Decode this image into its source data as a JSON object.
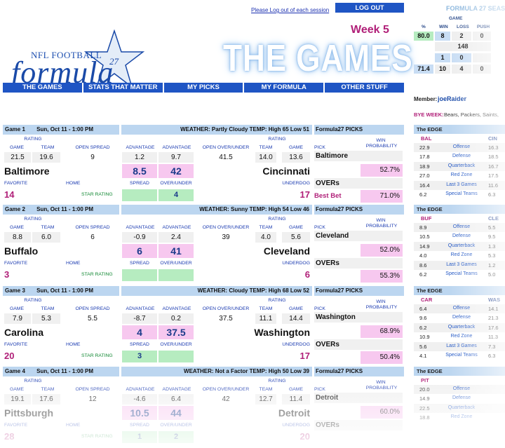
{
  "header": {
    "logout_text": "Please Log out of each session",
    "logout_button": "LOG OUT",
    "logo_small": "NFL FOOTBALL",
    "logo_big": "formula",
    "logo_27": "27",
    "week": "Week 5",
    "title": "THE GAMES"
  },
  "nav": [
    "THE GAMES",
    "STATS THAT MATTER",
    "MY PICKS",
    "MY FORMULA",
    "OTHER STUFF"
  ],
  "season": {
    "title": "FORMULA 27 SEAS",
    "game_label": "GAME",
    "headers": [
      "%",
      "WIN",
      "LOSS",
      "PUSH"
    ],
    "row1": [
      "80.0",
      "8",
      "2",
      "0"
    ],
    "row2": "148",
    "row3": [
      "1",
      "0"
    ],
    "row4": [
      "71.4",
      "10",
      "4",
      "0"
    ]
  },
  "member": {
    "label": "Member:",
    "value": "joeRaider"
  },
  "bye": {
    "label": "BYE WEEK:",
    "value": "Bears, Packers, Saints,"
  },
  "labels": {
    "rating": "RATING",
    "game": "GAME",
    "team": "TEAM",
    "open_spread": "OPEN SPREAD",
    "advantage": "ADVANTAGE",
    "open_ou": "OPEN OVER/UNDER",
    "pick": "PICK",
    "win": "WIN",
    "probability": "PROBABILITY",
    "favorite": "FAVORITE",
    "home": "HOME",
    "spread": "SPREAD",
    "over_under": "OVER/UNDER",
    "underdog": "UNDERDOG",
    "star_rating": "STAR RATING",
    "picks_bar": "Formula27 PICKS",
    "overs": "OVERs",
    "best_bet": "Best Bet",
    "edge": "The EDGE"
  },
  "games": [
    {
      "num": "Game 1",
      "date": "Sun, Oct 11 - 1:00 PM",
      "weather": "WEATHER: Partly Cloudy TEMP: High 65 Low 51",
      "fav_game": "21.5",
      "fav_team": "19.6",
      "open_spread": "9",
      "adv1": "1.2",
      "adv2": "9.7",
      "open_ou": "41.5",
      "dog_team": "14.0",
      "dog_game": "13.6",
      "fav_name": "Baltimore",
      "dog_name": "Cincinnati",
      "spread": "8.5",
      "ou": "42",
      "fav_stars": "14",
      "dog_stars": "17",
      "star_left": "",
      "star_right": "4",
      "pick": "Baltimore",
      "prob1": "52.7%",
      "overs_prob": "71.0%",
      "bet": "Best Bet"
    },
    {
      "num": "Game 2",
      "date": "Sun, Oct 11 - 1:00 PM",
      "weather": "WEATHER: Sunny TEMP: High 54 Low 46",
      "fav_game": "8.8",
      "fav_team": "6.0",
      "open_spread": "6",
      "adv1": "-0.9",
      "adv2": "2.4",
      "open_ou": "39",
      "dog_team": "4.0",
      "dog_game": "5.6",
      "fav_name": "Buffalo",
      "dog_name": "Cleveland",
      "spread": "6",
      "ou": "41",
      "fav_stars": "3",
      "dog_stars": "6",
      "star_left": "",
      "star_right": "",
      "pick": "Cleveland",
      "prob1": "52.0%",
      "overs_prob": "55.3%",
      "bet": ""
    },
    {
      "num": "Game 3",
      "date": "Sun, Oct 11 - 1:00 PM",
      "weather": "WEATHER: Cloudy TEMP: High 68 Low 52",
      "fav_game": "7.9",
      "fav_team": "5.3",
      "open_spread": "5.5",
      "adv1": "-8.7",
      "adv2": "0.2",
      "open_ou": "37.5",
      "dog_team": "11.1",
      "dog_game": "14.4",
      "fav_name": "Carolina",
      "dog_name": "Washington",
      "spread": "4",
      "ou": "37.5",
      "fav_stars": "20",
      "dog_stars": "17",
      "star_left": "3",
      "star_right": "",
      "pick": "Washington",
      "prob1": "68.9%",
      "overs_prob": "50.4%",
      "bet": ""
    },
    {
      "num": "Game 4",
      "date": "Sun, Oct 11 - 1:00 PM",
      "weather": "WEATHER: Not a Factor TEMP: High 50 Low 39",
      "fav_game": "19.1",
      "fav_team": "17.6",
      "open_spread": "12",
      "adv1": "-4.6",
      "adv2": "6.4",
      "open_ou": "42",
      "dog_team": "12.7",
      "dog_game": "11.4",
      "fav_name": "Pittsburgh",
      "dog_name": "Detroit",
      "spread": "10.5",
      "ou": "44",
      "fav_stars": "28",
      "dog_stars": "20",
      "star_left": "1",
      "star_right": "2",
      "pick": "Detroit",
      "prob1": "60.0%",
      "overs_prob": "",
      "bet": ""
    }
  ],
  "edges": [
    {
      "t1": "BAL",
      "t2": "CIN",
      "rows": [
        [
          "22.9",
          "Offense",
          "16.3"
        ],
        [
          "17.8",
          "Defense",
          "18.5"
        ],
        [
          "18.9",
          "Quarterback",
          "16.7"
        ],
        [
          "27.0",
          "Red Zone",
          "17.5"
        ],
        [
          "16.4",
          "Last 3 Games",
          "11.6"
        ],
        [
          "6.2",
          "Special Teams",
          "6.3"
        ]
      ]
    },
    {
      "t1": "BUF",
      "t2": "CLE",
      "rows": [
        [
          "8.9",
          "Offense",
          "5.5"
        ],
        [
          "10.5",
          "Defense",
          "9.5"
        ],
        [
          "14.9",
          "Quarterback",
          "1.3"
        ],
        [
          "4.0",
          "Red Zone",
          "5.3"
        ],
        [
          "8.6",
          "Last 3 Games",
          "1.2"
        ],
        [
          "6.2",
          "Special Teams",
          "5.0"
        ]
      ]
    },
    {
      "t1": "CAR",
      "t2": "WAS",
      "rows": [
        [
          "6.4",
          "Offense",
          "14.1"
        ],
        [
          "9.6",
          "Defense",
          "21.3"
        ],
        [
          "6.2",
          "Quarterback",
          "17.6"
        ],
        [
          "10.9",
          "Red Zone",
          "11.3"
        ],
        [
          "5.6",
          "Last 3 Games",
          "7.3"
        ],
        [
          "4.1",
          "Special Teams",
          "6.3"
        ]
      ]
    },
    {
      "t1": "PIT",
      "t2": "",
      "rows": [
        [
          "20.0",
          "Offense",
          ""
        ],
        [
          "14.9",
          "Defense",
          ""
        ],
        [
          "22.5",
          "Quarterback",
          ""
        ],
        [
          "18.8",
          "Red Zone",
          ""
        ],
        [
          "",
          "",
          ""
        ],
        [
          "",
          "",
          ""
        ]
      ]
    }
  ]
}
